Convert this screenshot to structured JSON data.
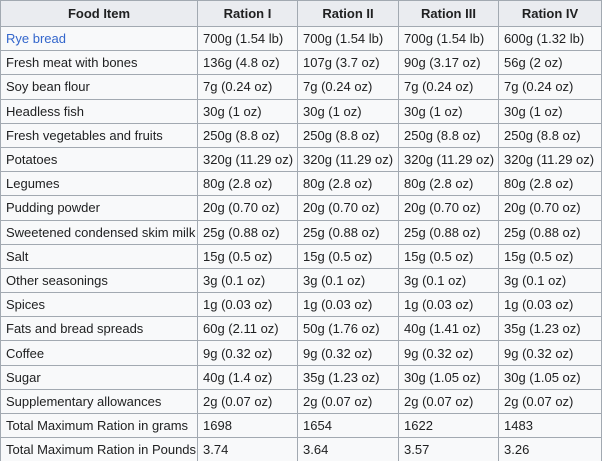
{
  "table": {
    "header": [
      "Food Item",
      "Ration I",
      "Ration II",
      "Ration III",
      "Ration IV"
    ],
    "rows": [
      [
        "Rye bread",
        "700g (1.54 lb)",
        "700g (1.54 lb)",
        "700g (1.54 lb)",
        "600g (1.32 lb)"
      ],
      [
        "Fresh meat with bones",
        "136g (4.8 oz)",
        "107g (3.7 oz)",
        "90g (3.17 oz)",
        "56g (2 oz)"
      ],
      [
        "Soy bean flour",
        "7g (0.24 oz)",
        "7g (0.24 oz)",
        "7g (0.24 oz)",
        "7g (0.24 oz)"
      ],
      [
        "Headless fish",
        "30g (1 oz)",
        "30g (1 oz)",
        "30g (1 oz)",
        "30g (1 oz)"
      ],
      [
        "Fresh vegetables and fruits",
        "250g (8.8 oz)",
        "250g (8.8 oz)",
        "250g (8.8 oz)",
        "250g (8.8 oz)"
      ],
      [
        "Potatoes",
        "320g (11.29 oz)",
        "320g (11.29 oz)",
        "320g (11.29 oz)",
        "320g (11.29 oz)"
      ],
      [
        "Legumes",
        "80g (2.8 oz)",
        "80g (2.8 oz)",
        "80g (2.8 oz)",
        "80g (2.8 oz)"
      ],
      [
        "Pudding powder",
        "20g (0.70 oz)",
        "20g (0.70 oz)",
        "20g (0.70 oz)",
        "20g (0.70 oz)"
      ],
      [
        "Sweetened condensed skim milk",
        "25g (0.88 oz)",
        "25g (0.88 oz)",
        "25g (0.88 oz)",
        "25g (0.88 oz)"
      ],
      [
        "Salt",
        "15g (0.5 oz)",
        "15g (0.5 oz)",
        "15g (0.5 oz)",
        "15g (0.5 oz)"
      ],
      [
        "Other seasonings",
        "3g (0.1 oz)",
        "3g (0.1 oz)",
        "3g (0.1 oz)",
        "3g (0.1 oz)"
      ],
      [
        "Spices",
        "1g (0.03 oz)",
        "1g (0.03 oz)",
        "1g (0.03 oz)",
        "1g (0.03 oz)"
      ],
      [
        "Fats and bread spreads",
        "60g (2.11 oz)",
        "50g (1.76 oz)",
        "40g (1.41 oz)",
        "35g (1.23 oz)"
      ],
      [
        "Coffee",
        "9g (0.32 oz)",
        "9g (0.32 oz)",
        "9g (0.32 oz)",
        "9g (0.32 oz)"
      ],
      [
        "Sugar",
        "40g (1.4 oz)",
        "35g (1.23 oz)",
        "30g (1.05 oz)",
        "30g (1.05 oz)"
      ],
      [
        "Supplementary allowances",
        "2g (0.07 oz)",
        "2g (0.07 oz)",
        "2g (0.07 oz)",
        "2g (0.07 oz)"
      ],
      [
        "Total Maximum Ration in grams",
        "1698",
        "1654",
        "1622",
        "1483"
      ],
      [
        "Total Maximum Ration in Pounds",
        "3.74",
        "3.64",
        "3.57",
        "3.26"
      ]
    ]
  }
}
